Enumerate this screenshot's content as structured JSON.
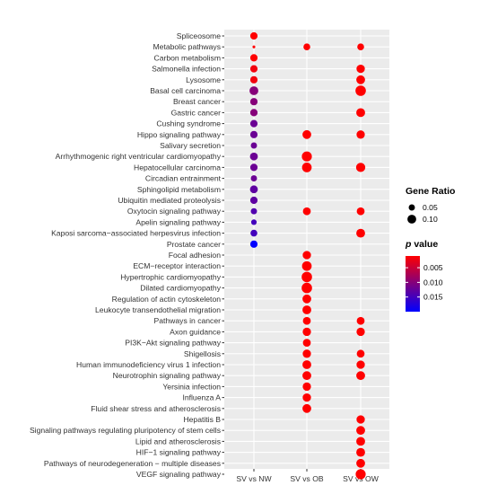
{
  "chart_data": {
    "type": "scatter",
    "comparisons": [
      "SV vs NW",
      "SV vs OB",
      "SV vs OW"
    ],
    "pathways": [
      "Spliceosome",
      "Metabolic pathways",
      "Carbon metabolism",
      "Salmonella infection",
      "Lysosome",
      "Basal cell carcinoma",
      "Breast cancer",
      "Gastric cancer",
      "Cushing syndrome",
      "Hippo signaling pathway",
      "Salivary secretion",
      "Arrhythmogenic right ventricular cardiomyopathy",
      "Hepatocellular carcinoma",
      "Circadian entrainment",
      "Sphingolipid metabolism",
      "Ubiquitin mediated proteolysis",
      "Oxytocin signaling pathway",
      "Apelin signaling pathway",
      "Kaposi sarcoma−associated herpesvirus infection",
      "Prostate cancer",
      "Focal adhesion",
      "ECM−receptor interaction",
      "Hypertrophic cardiomyopathy",
      "Dilated cardiomyopathy",
      "Regulation of actin cytoskeleton",
      "Leukocyte transendothelial migration",
      "Pathways in cancer",
      "Axon guidance",
      "PI3K−Akt signaling pathway",
      "Shigellosis",
      "Human immunodeficiency virus 1 infection",
      "Neurotrophin signaling pathway",
      "Yersinia infection",
      "Influenza A",
      "Fluid shear stress and atherosclerosis",
      "Hepatitis B",
      "Signaling pathways regulating pluripotency of stem cells",
      "Lipid and atherosclerosis",
      "HIF−1 signaling pathway",
      "Pathways of neurodegeneration − multiple diseases",
      "VEGF signaling pathway"
    ],
    "points": [
      {
        "pathway": "Spliceosome",
        "comparison": "SV vs NW",
        "gene_ratio": 0.07,
        "p_value": 0.001
      },
      {
        "pathway": "Metabolic pathways",
        "comparison": "SV vs NW",
        "gene_ratio": 0.01,
        "p_value": 0.001
      },
      {
        "pathway": "Metabolic pathways",
        "comparison": "SV vs OB",
        "gene_ratio": 0.06,
        "p_value": 0.001
      },
      {
        "pathway": "Metabolic pathways",
        "comparison": "SV vs OW",
        "gene_ratio": 0.06,
        "p_value": 0.001
      },
      {
        "pathway": "Carbon metabolism",
        "comparison": "SV vs NW",
        "gene_ratio": 0.07,
        "p_value": 0.001
      },
      {
        "pathway": "Salmonella infection",
        "comparison": "SV vs NW",
        "gene_ratio": 0.07,
        "p_value": 0.002
      },
      {
        "pathway": "Salmonella infection",
        "comparison": "SV vs OW",
        "gene_ratio": 0.09,
        "p_value": 0.001
      },
      {
        "pathway": "Lysosome",
        "comparison": "SV vs NW",
        "gene_ratio": 0.07,
        "p_value": 0.002
      },
      {
        "pathway": "Lysosome",
        "comparison": "SV vs OW",
        "gene_ratio": 0.1,
        "p_value": 0.001
      },
      {
        "pathway": "Basal cell carcinoma",
        "comparison": "SV vs NW",
        "gene_ratio": 0.1,
        "p_value": 0.01
      },
      {
        "pathway": "Basal cell carcinoma",
        "comparison": "SV vs OW",
        "gene_ratio": 0.14,
        "p_value": 0.001
      },
      {
        "pathway": "Breast cancer",
        "comparison": "SV vs NW",
        "gene_ratio": 0.07,
        "p_value": 0.01
      },
      {
        "pathway": "Gastric cancer",
        "comparison": "SV vs NW",
        "gene_ratio": 0.07,
        "p_value": 0.01
      },
      {
        "pathway": "Gastric cancer",
        "comparison": "SV vs OW",
        "gene_ratio": 0.1,
        "p_value": 0.001
      },
      {
        "pathway": "Cushing syndrome",
        "comparison": "SV vs NW",
        "gene_ratio": 0.07,
        "p_value": 0.012
      },
      {
        "pathway": "Hippo signaling pathway",
        "comparison": "SV vs NW",
        "gene_ratio": 0.07,
        "p_value": 0.012
      },
      {
        "pathway": "Hippo signaling pathway",
        "comparison": "SV vs OB",
        "gene_ratio": 0.1,
        "p_value": 0.001
      },
      {
        "pathway": "Hippo signaling pathway",
        "comparison": "SV vs OW",
        "gene_ratio": 0.09,
        "p_value": 0.001
      },
      {
        "pathway": "Salivary secretion",
        "comparison": "SV vs NW",
        "gene_ratio": 0.05,
        "p_value": 0.012
      },
      {
        "pathway": "Arrhythmogenic right ventricular cardiomyopathy",
        "comparison": "SV vs NW",
        "gene_ratio": 0.08,
        "p_value": 0.012
      },
      {
        "pathway": "Arrhythmogenic right ventricular cardiomyopathy",
        "comparison": "SV vs OB",
        "gene_ratio": 0.13,
        "p_value": 0.001
      },
      {
        "pathway": "Hepatocellular carcinoma",
        "comparison": "SV vs NW",
        "gene_ratio": 0.07,
        "p_value": 0.012
      },
      {
        "pathway": "Hepatocellular carcinoma",
        "comparison": "SV vs OB",
        "gene_ratio": 0.12,
        "p_value": 0.001
      },
      {
        "pathway": "Hepatocellular carcinoma",
        "comparison": "SV vs OW",
        "gene_ratio": 0.11,
        "p_value": 0.001
      },
      {
        "pathway": "Circadian entrainment",
        "comparison": "SV vs NW",
        "gene_ratio": 0.05,
        "p_value": 0.012
      },
      {
        "pathway": "Sphingolipid metabolism",
        "comparison": "SV vs NW",
        "gene_ratio": 0.08,
        "p_value": 0.013
      },
      {
        "pathway": "Ubiquitin mediated proteolysis",
        "comparison": "SV vs NW",
        "gene_ratio": 0.07,
        "p_value": 0.013
      },
      {
        "pathway": "Oxytocin signaling pathway",
        "comparison": "SV vs NW",
        "gene_ratio": 0.05,
        "p_value": 0.014
      },
      {
        "pathway": "Oxytocin signaling pathway",
        "comparison": "SV vs OB",
        "gene_ratio": 0.08,
        "p_value": 0.001
      },
      {
        "pathway": "Oxytocin signaling pathway",
        "comparison": "SV vs OW",
        "gene_ratio": 0.08,
        "p_value": 0.001
      },
      {
        "pathway": "Apelin signaling pathway",
        "comparison": "SV vs NW",
        "gene_ratio": 0.04,
        "p_value": 0.015
      },
      {
        "pathway": "Kaposi sarcoma−associated herpesvirus infection",
        "comparison": "SV vs NW",
        "gene_ratio": 0.06,
        "p_value": 0.015
      },
      {
        "pathway": "Kaposi sarcoma−associated herpesvirus infection",
        "comparison": "SV vs OW",
        "gene_ratio": 0.1,
        "p_value": 0.001
      },
      {
        "pathway": "Prostate cancer",
        "comparison": "SV vs NW",
        "gene_ratio": 0.07,
        "p_value": 0.02
      },
      {
        "pathway": "Focal adhesion",
        "comparison": "SV vs OB",
        "gene_ratio": 0.09,
        "p_value": 0.001
      },
      {
        "pathway": "ECM−receptor interaction",
        "comparison": "SV vs OB",
        "gene_ratio": 0.12,
        "p_value": 0.001
      },
      {
        "pathway": "Hypertrophic cardiomyopathy",
        "comparison": "SV vs OB",
        "gene_ratio": 0.14,
        "p_value": 0.001
      },
      {
        "pathway": "Dilated cardiomyopathy",
        "comparison": "SV vs OB",
        "gene_ratio": 0.14,
        "p_value": 0.001
      },
      {
        "pathway": "Regulation of actin cytoskeleton",
        "comparison": "SV vs OB",
        "gene_ratio": 0.1,
        "p_value": 0.001
      },
      {
        "pathway": "Leukocyte transendothelial migration",
        "comparison": "SV vs OB",
        "gene_ratio": 0.1,
        "p_value": 0.001
      },
      {
        "pathway": "Pathways in cancer",
        "comparison": "SV vs OB",
        "gene_ratio": 0.08,
        "p_value": 0.001
      },
      {
        "pathway": "Pathways in cancer",
        "comparison": "SV vs OW",
        "gene_ratio": 0.08,
        "p_value": 0.001
      },
      {
        "pathway": "Axon guidance",
        "comparison": "SV vs OB",
        "gene_ratio": 0.09,
        "p_value": 0.001
      },
      {
        "pathway": "Axon guidance",
        "comparison": "SV vs OW",
        "gene_ratio": 0.09,
        "p_value": 0.001
      },
      {
        "pathway": "PI3K−Akt signaling pathway",
        "comparison": "SV vs OB",
        "gene_ratio": 0.08,
        "p_value": 0.001
      },
      {
        "pathway": "Shigellosis",
        "comparison": "SV vs OB",
        "gene_ratio": 0.09,
        "p_value": 0.001
      },
      {
        "pathway": "Shigellosis",
        "comparison": "SV vs OW",
        "gene_ratio": 0.08,
        "p_value": 0.001
      },
      {
        "pathway": "Human immunodeficiency virus 1 infection",
        "comparison": "SV vs OB",
        "gene_ratio": 0.1,
        "p_value": 0.001
      },
      {
        "pathway": "Human immunodeficiency virus 1 infection",
        "comparison": "SV vs OW",
        "gene_ratio": 0.09,
        "p_value": 0.001
      },
      {
        "pathway": "Neurotrophin signaling pathway",
        "comparison": "SV vs OB",
        "gene_ratio": 0.1,
        "p_value": 0.001
      },
      {
        "pathway": "Neurotrophin signaling pathway",
        "comparison": "SV vs OW",
        "gene_ratio": 0.1,
        "p_value": 0.001
      },
      {
        "pathway": "Yersinia infection",
        "comparison": "SV vs OB",
        "gene_ratio": 0.09,
        "p_value": 0.001
      },
      {
        "pathway": "Influenza A",
        "comparison": "SV vs OB",
        "gene_ratio": 0.09,
        "p_value": 0.001
      },
      {
        "pathway": "Fluid shear stress and atherosclerosis",
        "comparison": "SV vs OB",
        "gene_ratio": 0.1,
        "p_value": 0.001
      },
      {
        "pathway": "Hepatitis B",
        "comparison": "SV vs OW",
        "gene_ratio": 0.09,
        "p_value": 0.001
      },
      {
        "pathway": "Signaling pathways regulating pluripotency of stem cells",
        "comparison": "SV vs OW",
        "gene_ratio": 0.1,
        "p_value": 0.001
      },
      {
        "pathway": "Lipid and atherosclerosis",
        "comparison": "SV vs OW",
        "gene_ratio": 0.1,
        "p_value": 0.001
      },
      {
        "pathway": "HIF−1 signaling pathway",
        "comparison": "SV vs OW",
        "gene_ratio": 0.1,
        "p_value": 0.001
      },
      {
        "pathway": "Pathways of neurodegeneration − multiple diseases",
        "comparison": "SV vs OW",
        "gene_ratio": 0.1,
        "p_value": 0.001
      },
      {
        "pathway": "VEGF signaling pathway",
        "comparison": "SV vs OW",
        "gene_ratio": 0.13,
        "p_value": 0.001
      }
    ],
    "size_legend": {
      "title": "Gene Ratio",
      "entries": [
        {
          "label": "0.05",
          "value": 0.05
        },
        {
          "label": "0.10",
          "value": 0.1
        }
      ]
    },
    "color_legend": {
      "title_italic": "p",
      "title_rest": " value",
      "ticks": [
        {
          "label": "0.005",
          "value": 0.005
        },
        {
          "label": "0.010",
          "value": 0.01
        },
        {
          "label": "0.015",
          "value": 0.015
        }
      ],
      "range": [
        0.001,
        0.02
      ],
      "color_low": "#ff0000",
      "color_high": "#0000ff"
    },
    "grid": true,
    "panel_background": "#ebebeb",
    "gridline_color": "#ffffff",
    "legend_placement": "right"
  }
}
